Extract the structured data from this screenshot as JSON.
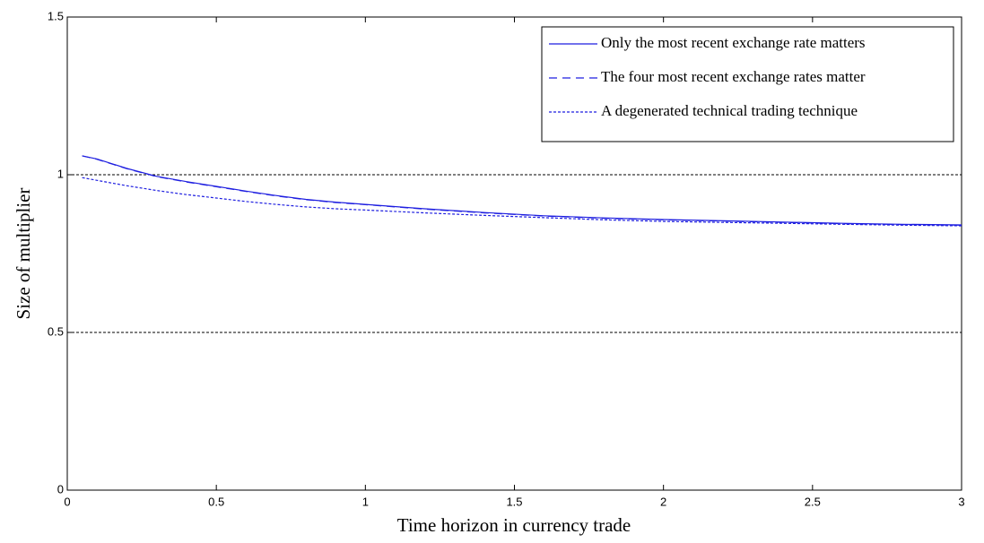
{
  "chart_data": {
    "type": "line",
    "xlabel": "Time horizon in currency trade",
    "ylabel": "Size of multiplier",
    "x": [
      0.05,
      0.1,
      0.2,
      0.3,
      0.4,
      0.5,
      0.6,
      0.7,
      0.8,
      0.9,
      1,
      1.2,
      1.4,
      1.6,
      1.8,
      2,
      2.2,
      2.4,
      2.6,
      2.8,
      3
    ],
    "series": [
      {
        "name": "Only the most recent exchange rate matters",
        "color": "#1f1fe0",
        "style": "solid",
        "values": [
          1.06,
          1.05,
          1.02,
          0.995,
          0.978,
          0.963,
          0.948,
          0.934,
          0.922,
          0.913,
          0.906,
          0.892,
          0.88,
          0.87,
          0.863,
          0.858,
          0.854,
          0.85,
          0.846,
          0.843,
          0.841
        ]
      },
      {
        "name": "The four most recent exchange rates matter",
        "color": "#1f1fe0",
        "style": "dashed",
        "values": [
          1.06,
          1.049,
          1.019,
          0.994,
          0.977,
          0.962,
          0.947,
          0.933,
          0.921,
          0.912,
          0.905,
          0.891,
          0.879,
          0.869,
          0.862,
          0.857,
          0.853,
          0.849,
          0.845,
          0.842,
          0.84
        ]
      },
      {
        "name": "A degenerated technical trading technique",
        "color": "#1f1fe0",
        "style": "dotted",
        "values": [
          0.991,
          0.982,
          0.965,
          0.95,
          0.937,
          0.926,
          0.915,
          0.906,
          0.898,
          0.892,
          0.888,
          0.879,
          0.871,
          0.864,
          0.857,
          0.852,
          0.849,
          0.846,
          0.843,
          0.84,
          0.838
        ]
      }
    ],
    "xlim": [
      0,
      3
    ],
    "xticks": [
      0,
      0.5,
      1,
      1.5,
      2,
      2.5,
      3
    ],
    "ylim": [
      0,
      1.5
    ],
    "yticks": [
      0,
      0.5,
      1,
      1.5
    ],
    "grid": "y",
    "legend": "top-right"
  }
}
